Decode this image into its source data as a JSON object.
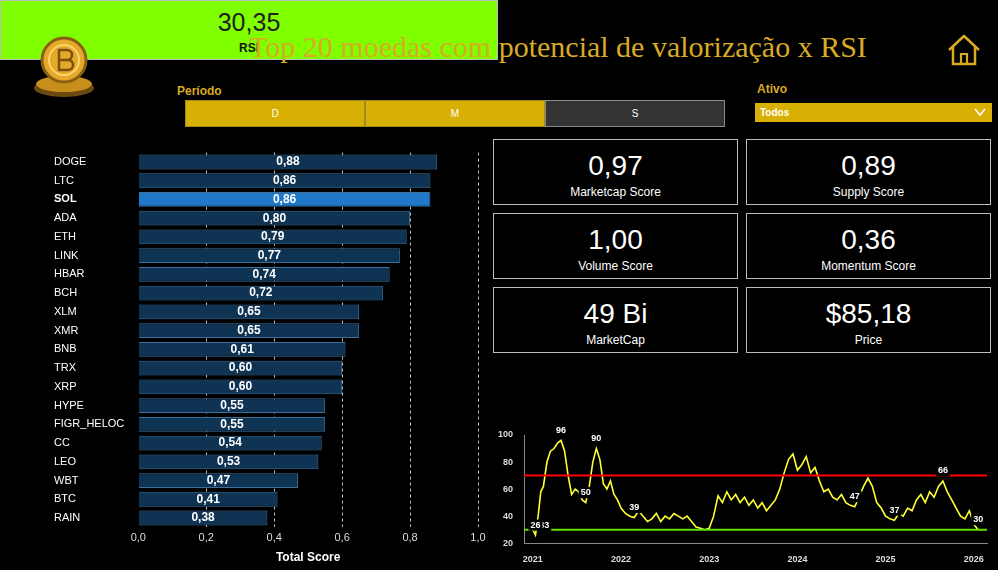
{
  "header": {
    "title": "Top 20 moedas com potencial de valorização x RSI"
  },
  "filters": {
    "period": {
      "label": "Período",
      "options": [
        {
          "label": "D",
          "selected": true
        },
        {
          "label": "M",
          "selected": true
        },
        {
          "label": "S",
          "selected": false
        }
      ]
    },
    "asset": {
      "label": "Ativo",
      "value": "Todos"
    }
  },
  "cards": [
    {
      "value": "0,97",
      "label": "Marketcap Score"
    },
    {
      "value": "0,89",
      "label": "Supply Score"
    },
    {
      "value": "1,00",
      "label": "Volume Score"
    },
    {
      "value": "0,36",
      "label": "Momentum Score"
    },
    {
      "value": "49 Bi",
      "label": "MarketCap"
    },
    {
      "value": "$85,18",
      "label": "Price"
    }
  ],
  "rsi_card": {
    "value": "30,35",
    "label": "RSI",
    "color": "#7fff00"
  },
  "chart_data": [
    {
      "type": "bar",
      "orientation": "horizontal",
      "categories": [
        "DOGE",
        "LTC",
        "SOL",
        "ADA",
        "ETH",
        "LINK",
        "HBAR",
        "BCH",
        "XLM",
        "XMR",
        "BNB",
        "TRX",
        "XRP",
        "HYPE",
        "FIGR_HELOC",
        "CC",
        "LEO",
        "WBT",
        "BTC",
        "RAIN"
      ],
      "values": [
        0.88,
        0.86,
        0.86,
        0.8,
        0.79,
        0.77,
        0.74,
        0.72,
        0.65,
        0.65,
        0.61,
        0.6,
        0.6,
        0.55,
        0.55,
        0.54,
        0.53,
        0.47,
        0.41,
        0.38
      ],
      "value_labels": [
        "0,88",
        "0,86",
        "0,86",
        "0,80",
        "0,79",
        "0,77",
        "0,74",
        "0,72",
        "0,65",
        "0,65",
        "0,61",
        "0,60",
        "0,60",
        "0,55",
        "0,55",
        "0,54",
        "0,53",
        "0,47",
        "0,41",
        "0,38"
      ],
      "colors": [
        "#0f3352",
        "#0f3352",
        "#1f78c8",
        "#0f3352",
        "#0f3352",
        "#0f3352",
        "#0f3352",
        "#0f3352",
        "#0f3352",
        "#0f3352",
        "#0f3352",
        "#0f3352",
        "#0f3352",
        "#0f3352",
        "#0f3352",
        "#0f3352",
        "#0f3352",
        "#0f3352",
        "#0f3352",
        "#0f3352"
      ],
      "xlim": [
        0,
        1
      ],
      "xticks": [
        {
          "value": 0,
          "label": "0,0"
        },
        {
          "value": 0.2,
          "label": "0,2"
        },
        {
          "value": 0.4,
          "label": "0,4"
        },
        {
          "value": 0.6,
          "label": "0,6"
        },
        {
          "value": 0.8,
          "label": "0,8"
        },
        {
          "value": 1,
          "label": "1,0"
        }
      ],
      "xlabel": "Total Score",
      "grid": true,
      "data_labels": true
    },
    {
      "type": "line",
      "x": [
        2020.97,
        2021.0,
        2021.03,
        2021.06,
        2021.09,
        2021.12,
        2021.16,
        2021.2,
        2021.24,
        2021.28,
        2021.32,
        2021.36,
        2021.4,
        2021.44,
        2021.48,
        2021.52,
        2021.56,
        2021.6,
        2021.64,
        2021.68,
        2021.72,
        2021.76,
        2021.8,
        2021.84,
        2021.88,
        2021.92,
        2021.96,
        2022.0,
        2022.05,
        2022.1,
        2022.15,
        2022.2,
        2022.25,
        2022.3,
        2022.35,
        2022.4,
        2022.45,
        2022.5,
        2022.55,
        2022.6,
        2022.65,
        2022.7,
        2022.75,
        2022.8,
        2022.85,
        2022.9,
        2022.95,
        2023.0,
        2023.05,
        2023.1,
        2023.15,
        2023.2,
        2023.25,
        2023.3,
        2023.35,
        2023.4,
        2023.45,
        2023.5,
        2023.55,
        2023.6,
        2023.65,
        2023.7,
        2023.75,
        2023.8,
        2023.85,
        2023.9,
        2023.95,
        2024.0,
        2024.05,
        2024.1,
        2024.15,
        2024.2,
        2024.25,
        2024.3,
        2024.35,
        2024.4,
        2024.45,
        2024.5,
        2024.55,
        2024.6,
        2024.65,
        2024.7,
        2024.75,
        2024.8,
        2024.85,
        2024.9,
        2024.95,
        2025.0,
        2025.05,
        2025.1,
        2025.15,
        2025.2,
        2025.25,
        2025.3,
        2025.35,
        2025.4,
        2025.45,
        2025.5,
        2025.55,
        2025.6,
        2025.65,
        2025.7,
        2025.75,
        2025.8,
        2025.85,
        2025.9,
        2025.95,
        2026.0,
        2026.05
      ],
      "values": [
        33,
        30,
        26,
        40,
        58,
        62,
        80,
        88,
        90,
        94,
        96,
        88,
        70,
        56,
        60,
        58,
        52,
        50,
        62,
        80,
        90,
        82,
        64,
        60,
        66,
        56,
        52,
        46,
        42,
        40,
        39,
        44,
        40,
        36,
        38,
        42,
        36,
        40,
        38,
        42,
        40,
        38,
        40,
        36,
        32,
        31,
        30,
        31,
        40,
        55,
        50,
        58,
        52,
        56,
        50,
        54,
        48,
        52,
        46,
        50,
        44,
        48,
        52,
        60,
        72,
        82,
        86,
        74,
        78,
        84,
        72,
        76,
        66,
        58,
        60,
        54,
        52,
        56,
        50,
        48,
        47,
        54,
        62,
        68,
        62,
        50,
        46,
        40,
        38,
        37,
        42,
        40,
        46,
        44,
        52,
        56,
        50,
        58,
        54,
        62,
        66,
        58,
        52,
        46,
        40,
        38,
        44,
        34,
        30
      ],
      "color": "#ffff33",
      "xlim": [
        2020.9,
        2026.15
      ],
      "xticks": [
        2021,
        2022,
        2023,
        2024,
        2025,
        2026
      ],
      "ylim": [
        20,
        100
      ],
      "yticks": [
        20,
        40,
        60,
        80,
        100
      ],
      "grid": false,
      "hlines": [
        {
          "value": 70,
          "color": "#ff0000"
        },
        {
          "value": 30,
          "color": "#66e000"
        }
      ],
      "annotations": [
        {
          "x": 2020.97,
          "y": 33
        },
        {
          "x": 2021.03,
          "y": 26
        },
        {
          "x": 2021.32,
          "y": 96
        },
        {
          "x": 2021.72,
          "y": 90
        },
        {
          "x": 2021.6,
          "y": 50
        },
        {
          "x": 2022.15,
          "y": 39
        },
        {
          "x": 2024.65,
          "y": 47
        },
        {
          "x": 2025.1,
          "y": 37
        },
        {
          "x": 2025.65,
          "y": 66
        },
        {
          "x": 2026.05,
          "y": 30
        }
      ]
    }
  ]
}
